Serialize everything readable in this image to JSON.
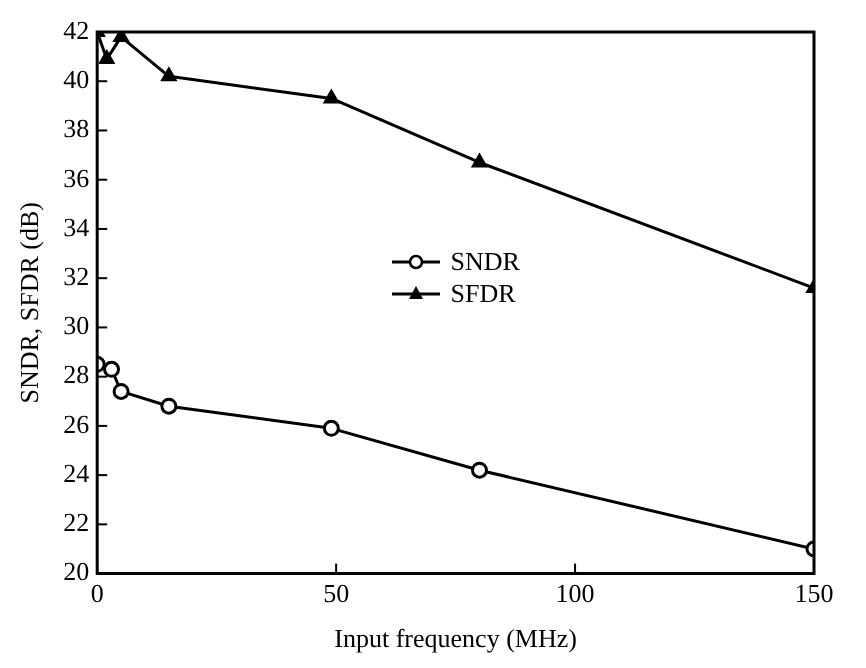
{
  "chart_data": {
    "type": "line",
    "xlabel": "Input frequency (MHz)",
    "ylabel": "SNDR, SFDR (dB)",
    "xlim": [
      0,
      150
    ],
    "xticks": [
      0,
      50,
      100,
      150
    ],
    "ylim": [
      20,
      42
    ],
    "yticks": [
      20,
      22,
      24,
      26,
      28,
      30,
      32,
      34,
      36,
      38,
      40,
      42
    ],
    "grid": false,
    "legend": "center",
    "line_style": "solid",
    "series": [
      {
        "name": "SNDR",
        "color": "#000000",
        "marker": "circle",
        "x": [
          0,
          3,
          5,
          15,
          49,
          80,
          150
        ],
        "values": [
          28.5,
          28.3,
          27.4,
          26.8,
          25.9,
          24.2,
          21.0
        ]
      },
      {
        "name": "SFDR",
        "color": "#000000",
        "marker": "triangle",
        "x": [
          0,
          2,
          5,
          15,
          49,
          80,
          150
        ],
        "values": [
          42,
          40.9,
          41.8,
          40.2,
          39.3,
          36.7,
          31.6
        ]
      }
    ]
  }
}
